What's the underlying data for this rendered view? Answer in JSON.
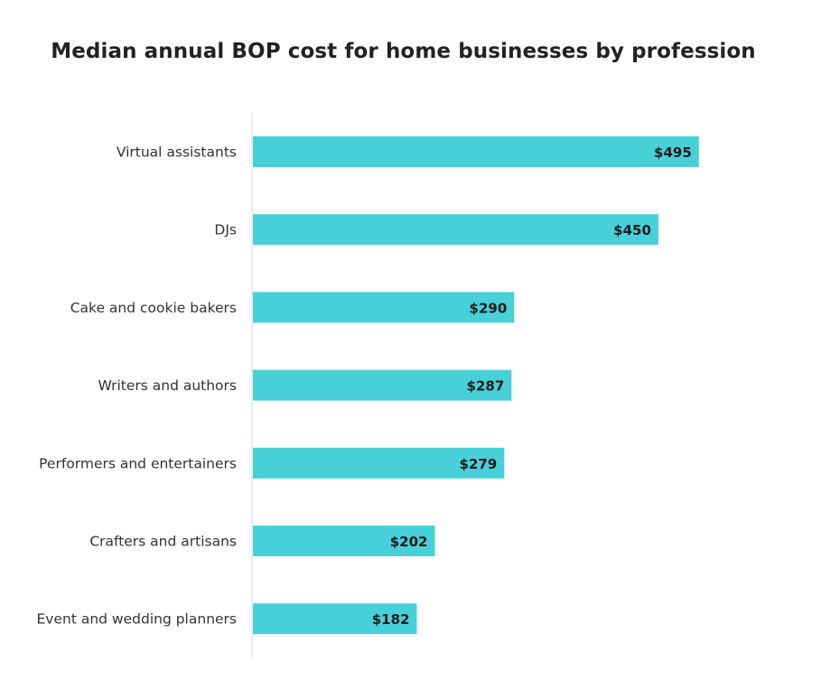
{
  "chart_data": {
    "type": "bar",
    "orientation": "horizontal",
    "title": "Median annual BOP cost for home businesses by profession",
    "categories": [
      "Virtual assistants",
      "DJs",
      "Cake and cookie bakers",
      "Writers and authors",
      "Performers and entertainers",
      "Crafters and artisans",
      "Event and wedding planners"
    ],
    "values": [
      495,
      450,
      290,
      287,
      279,
      202,
      182
    ],
    "value_labels": [
      "$495",
      "$450",
      "$290",
      "$287",
      "$279",
      "$202",
      "$182"
    ],
    "xlabel": "",
    "ylabel": "",
    "xlim": [
      0,
      500
    ],
    "grid": false,
    "legend": "none",
    "bar_color": "#48d0d8",
    "axis_color": "#d9d9d9"
  }
}
